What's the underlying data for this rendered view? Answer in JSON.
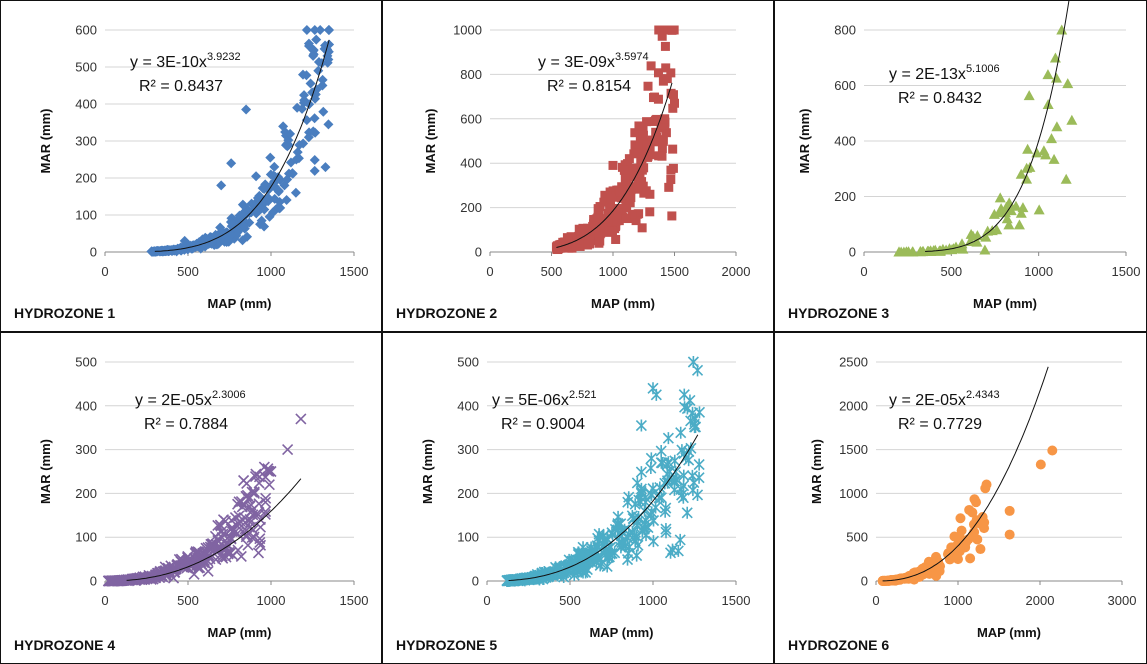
{
  "chart_data": [
    {
      "type": "scatter",
      "panel_label": "HYDROZONE 1",
      "xlabel": "MAP (mm)",
      "ylabel": "MAR (mm)",
      "xlim": [
        0,
        1500
      ],
      "ylim": [
        0,
        600
      ],
      "xticks": [
        "0",
        "500",
        "1000",
        "1500"
      ],
      "yticks": [
        "0",
        "100",
        "200",
        "300",
        "400",
        "500",
        "600"
      ],
      "equation": {
        "prefix": "y = 3E-10x",
        "exponent": "3.9232",
        "a": 3e-10,
        "b": 3.9232
      },
      "r2": "R² = 0.8437",
      "color": "#4a7ebf",
      "marker": "diamond",
      "trend_range": [
        300,
        1350
      ],
      "scatter_range": [
        280,
        1350
      ],
      "n_points": 330,
      "spread": 0.28,
      "points": [
        [
          850,
          385
        ],
        [
          1340,
          530
        ],
        [
          1310,
          450
        ],
        [
          1200,
          410
        ],
        [
          1150,
          160
        ],
        [
          1020,
          230
        ],
        [
          480,
          30
        ],
        [
          700,
          180
        ],
        [
          760,
          240
        ]
      ]
    },
    {
      "type": "scatter",
      "panel_label": "HYDROZONE 2",
      "xlabel": "MAP (mm)",
      "ylabel": "MAR (mm)",
      "xlim": [
        0,
        2000
      ],
      "ylim": [
        0,
        1000
      ],
      "xticks": [
        "0",
        "500",
        "1000",
        "1500",
        "2000"
      ],
      "yticks": [
        "0",
        "200",
        "400",
        "600",
        "800",
        "1000"
      ],
      "equation": {
        "prefix": "y = 3E-09x",
        "exponent": "3.5974",
        "a": 3e-09,
        "b": 3.5974
      },
      "r2": "R² = 0.8154",
      "color": "#c0504d",
      "marker": "square",
      "trend_range": [
        540,
        1480
      ],
      "scatter_range": [
        540,
        1500
      ],
      "n_points": 300,
      "spread": 0.3,
      "points": [
        [
          1500,
          670
        ],
        [
          1420,
          600
        ],
        [
          1280,
          480
        ],
        [
          1300,
          260
        ],
        [
          1000,
          390
        ],
        [
          1100,
          330
        ]
      ]
    },
    {
      "type": "scatter",
      "panel_label": "HYDROZONE 3",
      "xlabel": "MAP (mm)",
      "ylabel": "MAR (mm)",
      "xlim": [
        0,
        1500
      ],
      "ylim": [
        0,
        800
      ],
      "xticks": [
        "0",
        "500",
        "1000",
        "1500"
      ],
      "yticks": [
        "0",
        "200",
        "400",
        "600",
        "800"
      ],
      "equation": {
        "prefix": "y = 2E-13x",
        "exponent": "5.1006",
        "a": 2e-13,
        "b": 5.1006
      },
      "r2": "R² = 0.8432",
      "color": "#9bbb59",
      "marker": "triangle",
      "trend_range": [
        350,
        1180
      ],
      "scatter_range": [
        200,
        1190
      ],
      "n_points": 70,
      "spread": 0.35,
      "points": [
        [
          1190,
          475
        ],
        [
          1030,
          365
        ],
        [
          1040,
          350
        ],
        [
          950,
          305
        ],
        [
          900,
          280
        ],
        [
          870,
          165
        ],
        [
          910,
          160
        ],
        [
          780,
          195
        ],
        [
          820,
          120
        ],
        [
          760,
          80
        ]
      ]
    },
    {
      "type": "scatter",
      "panel_label": "HYDROZONE 4",
      "xlabel": "MAP (mm)",
      "ylabel": "MAR (mm)",
      "xlim": [
        0,
        1500
      ],
      "ylim": [
        0,
        500
      ],
      "xticks": [
        "0",
        "500",
        "1000",
        "1500"
      ],
      "yticks": [
        "0",
        "100",
        "200",
        "300",
        "400",
        "500"
      ],
      "equation": {
        "prefix": "y = 2E-05x",
        "exponent": "2.3006",
        "a": 2e-05,
        "b": 2.3006
      },
      "r2": "R² = 0.7884",
      "color": "#8064a2",
      "marker": "cross",
      "trend_range": [
        130,
        1180
      ],
      "scatter_range": [
        20,
        1000
      ],
      "n_points": 340,
      "spread": 0.3,
      "bias": 1.2,
      "points": [
        [
          1180,
          370
        ],
        [
          1100,
          300
        ],
        [
          1000,
          250
        ],
        [
          960,
          260
        ],
        [
          900,
          200
        ],
        [
          990,
          220
        ]
      ]
    },
    {
      "type": "scatter",
      "panel_label": "HYDROZONE 5",
      "xlabel": "MAP (mm)",
      "ylabel": "MAR (mm)",
      "xlim": [
        0,
        1500
      ],
      "ylim": [
        0,
        500
      ],
      "xticks": [
        "0",
        "500",
        "1000",
        "1500"
      ],
      "yticks": [
        "0",
        "100",
        "200",
        "300",
        "400",
        "500"
      ],
      "equation": {
        "prefix": "y = 5E-06x",
        "exponent": "2.521",
        "a": 5e-06,
        "b": 2.521
      },
      "r2": "R² = 0.9004",
      "color": "#4bacc6",
      "marker": "star",
      "trend_range": [
        130,
        1270
      ],
      "scatter_range": [
        120,
        1280
      ],
      "n_points": 360,
      "spread": 0.3,
      "points": [
        [
          1000,
          440
        ],
        [
          1020,
          425
        ],
        [
          930,
          355
        ],
        [
          1280,
          385
        ],
        [
          1050,
          270
        ],
        [
          990,
          280
        ],
        [
          1100,
          250
        ]
      ]
    },
    {
      "type": "scatter",
      "panel_label": "HYDROZONE 6",
      "xlabel": "MAP (mm)",
      "ylabel": "MAR (mm)",
      "xlim": [
        0,
        3000
      ],
      "ylim": [
        0,
        2500
      ],
      "xticks": [
        "0",
        "1000",
        "2000",
        "3000"
      ],
      "yticks": [
        "0",
        "500",
        "1000",
        "1500",
        "2000",
        "2500"
      ],
      "equation": {
        "prefix": "y = 2E-05x",
        "exponent": "2.4343",
        "a": 2e-05,
        "b": 2.4343
      },
      "r2": "R² = 0.7729",
      "color": "#f79646",
      "marker": "circle",
      "trend_range": [
        80,
        2100
      ],
      "scatter_range": [
        80,
        1350
      ],
      "n_points": 150,
      "spread": 0.3,
      "points": [
        [
          2150,
          1490
        ],
        [
          2010,
          1330
        ],
        [
          1630,
          800
        ],
        [
          1630,
          530
        ],
        [
          1220,
          900
        ],
        [
          1300,
          730
        ],
        [
          1050,
          420
        ],
        [
          900,
          260
        ],
        [
          1000,
          250
        ]
      ]
    }
  ]
}
